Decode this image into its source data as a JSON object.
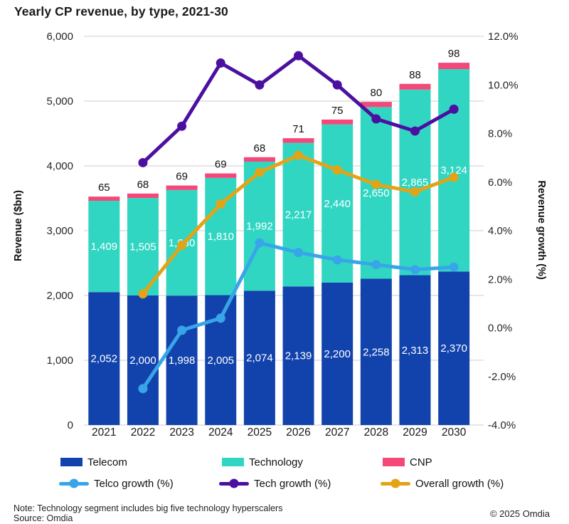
{
  "title": "Yearly CP revenue, by type, 2021-30",
  "colors": {
    "telecom": "#1243ac",
    "technology": "#31d6c3",
    "cnp": "#f4477а-fix",
    "cnp_fixed": "#f4477a",
    "telco_growth": "#38a5e8",
    "tech_growth": "#4c10a1",
    "overall_growth": "#e2a416",
    "grid": "#d6d6d6"
  },
  "chart_data": {
    "type": "bar+line",
    "categories": [
      "2021",
      "2022",
      "2023",
      "2024",
      "2025",
      "2026",
      "2027",
      "2028",
      "2029",
      "2030"
    ],
    "bar_series": [
      {
        "name": "Telecom",
        "color": "telecom",
        "label_color": "#ffffff",
        "values": [
          2052,
          2000,
          1998,
          2005,
          2074,
          2139,
          2200,
          2258,
          2313,
          2370
        ]
      },
      {
        "name": "Technology",
        "color": "technology",
        "label_color": "#ffffff",
        "values": [
          1409,
          1505,
          1630,
          1810,
          1992,
          2217,
          2440,
          2650,
          2865,
          3124
        ]
      },
      {
        "name": "CNP",
        "color": "cnp_fixed",
        "label_color": "#111111",
        "values": [
          65,
          68,
          69,
          69,
          68,
          71,
          75,
          80,
          88,
          98
        ]
      }
    ],
    "line_series": [
      {
        "name": "Overall growth (%)",
        "color": "overall_growth",
        "values": [
          null,
          1.4,
          3.4,
          5.1,
          6.4,
          7.1,
          6.5,
          5.9,
          5.6,
          6.2
        ]
      },
      {
        "name": "Telco growth (%)",
        "color": "telco_growth",
        "values": [
          null,
          -2.5,
          -0.1,
          0.4,
          3.5,
          3.1,
          2.8,
          2.6,
          2.4,
          2.5
        ]
      },
      {
        "name": "Tech growth (%)",
        "color": "tech_growth",
        "values": [
          null,
          6.8,
          8.3,
          10.9,
          10.0,
          11.2,
          10.0,
          8.6,
          8.1,
          9.0
        ]
      }
    ],
    "left_axis": {
      "title": "Revenue ($bn)",
      "min": 0,
      "max": 6000,
      "ticks": [
        0,
        1000,
        2000,
        3000,
        4000,
        5000,
        6000
      ]
    },
    "right_axis": {
      "title": "Revenue growth (%)",
      "min": -4,
      "max": 12,
      "ticks": [
        12,
        10,
        8,
        6,
        4,
        2,
        0,
        -2,
        -4
      ]
    },
    "grid": "horizontal"
  },
  "legend": {
    "items": [
      {
        "label": "Telecom",
        "marker": "swatch",
        "color": "telecom"
      },
      {
        "label": "Technology",
        "marker": "swatch",
        "color": "technology"
      },
      {
        "label": "CNP",
        "marker": "swatch",
        "color": "cnp_fixed"
      },
      {
        "label": "Telco growth (%)",
        "marker": "line",
        "color": "telco_growth"
      },
      {
        "label": "Tech growth (%)",
        "marker": "line",
        "color": "tech_growth"
      },
      {
        "label": "Overall growth (%)",
        "marker": "line",
        "color": "overall_growth"
      }
    ]
  },
  "footer": {
    "note": "Note: Technology segment includes big five technology hyperscalers",
    "source": "Source: Omdia",
    "copyright": "© 2025 Omdia"
  }
}
